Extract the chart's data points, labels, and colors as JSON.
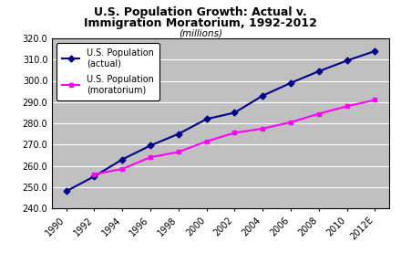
{
  "title_line1": "U.S. Population Growth: Actual v.",
  "title_line2": "Immigration Moratorium, 1992-2012",
  "subtitle": "(millions)",
  "x_labels": [
    "1990",
    "1992",
    "1994",
    "1996",
    "1998",
    "2000",
    "2002",
    "2004",
    "2006",
    "2008",
    "2010",
    "2012E"
  ],
  "x_values": [
    1990,
    1992,
    1994,
    1996,
    1998,
    2000,
    2002,
    2004,
    2006,
    2008,
    2010,
    2012
  ],
  "actual": [
    248.0,
    255.0,
    263.0,
    269.5,
    275.0,
    282.0,
    285.0,
    293.0,
    299.0,
    304.5,
    309.5,
    314.0
  ],
  "moratorium": [
    null,
    256.0,
    258.5,
    264.0,
    266.5,
    271.5,
    275.5,
    277.5,
    280.5,
    284.5,
    288.0,
    291.0
  ],
  "actual_color": "#00008B",
  "moratorium_color": "#FF00FF",
  "plot_bg_color": "#C0C0C0",
  "fig_bg_color": "#FFFFFF",
  "ylim": [
    240.0,
    320.0
  ],
  "yticks": [
    240.0,
    250.0,
    260.0,
    270.0,
    280.0,
    290.0,
    300.0,
    310.0,
    320.0
  ],
  "legend_actual": "U.S. Population\n(actual)",
  "legend_moratorium": "U.S. Population\n(moratorium)"
}
